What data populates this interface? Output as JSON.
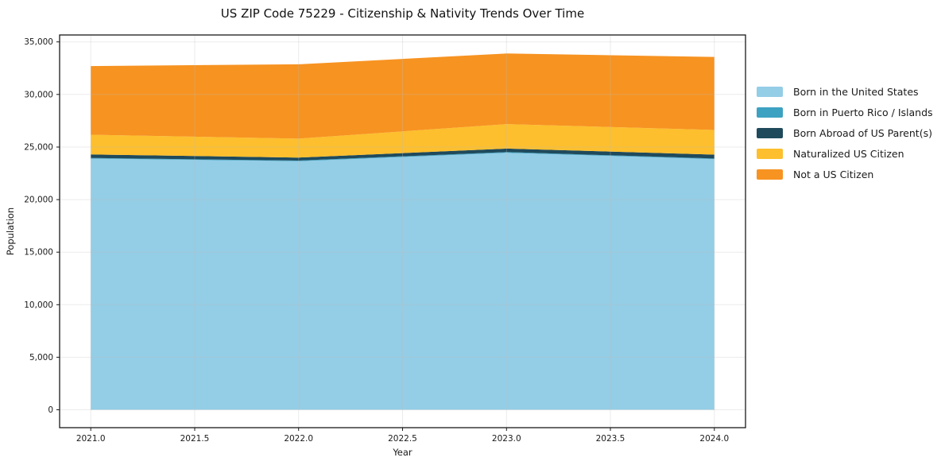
{
  "chart_data": {
    "type": "area",
    "stacked": true,
    "title": "US ZIP Code 75229 - Citizenship & Nativity Trends Over Time",
    "xlabel": "Year",
    "ylabel": "Population",
    "x": [
      2021,
      2022,
      2023,
      2024
    ],
    "series": [
      {
        "name": "Born in the United States",
        "color": "#94cde6",
        "values": [
          23900,
          23650,
          24450,
          23850
        ]
      },
      {
        "name": "Born in Puerto Rico / Islands",
        "color": "#3da2c2",
        "values": [
          60,
          60,
          70,
          60
        ]
      },
      {
        "name": "Born Abroad of US Parent(s)",
        "color": "#1f4a5c",
        "values": [
          330,
          290,
          330,
          370
        ]
      },
      {
        "name": "Naturalized US Citizen",
        "color": "#fdbf2d",
        "values": [
          1880,
          1800,
          2330,
          2340
        ]
      },
      {
        "name": "Not a US Citizen",
        "color": "#f79321",
        "values": [
          6530,
          7070,
          6720,
          6950
        ]
      }
    ],
    "totals": [
      32700,
      32870,
      33900,
      33570
    ],
    "xlim": [
      2020.85,
      2024.15
    ],
    "ylim": [
      -1700,
      35660
    ],
    "x_ticks": [
      2021.0,
      2021.5,
      2022.0,
      2022.5,
      2023.0,
      2023.5,
      2024.0
    ],
    "x_tick_labels": [
      "2021.0",
      "2021.5",
      "2022.0",
      "2022.5",
      "2023.0",
      "2023.5",
      "2024.0"
    ],
    "y_ticks": [
      0,
      5000,
      10000,
      15000,
      20000,
      25000,
      30000,
      35000
    ],
    "y_tick_labels": [
      "0",
      "5,000",
      "10,000",
      "15,000",
      "20,000",
      "25,000",
      "30,000",
      "35,000"
    ],
    "grid": true,
    "grid_color": "#bdbdbd",
    "grid_alpha": 0.3,
    "spine_color": "#1a1a1a",
    "tick_text_color": "#1a1a1a",
    "legend_position": "right-outside"
  }
}
